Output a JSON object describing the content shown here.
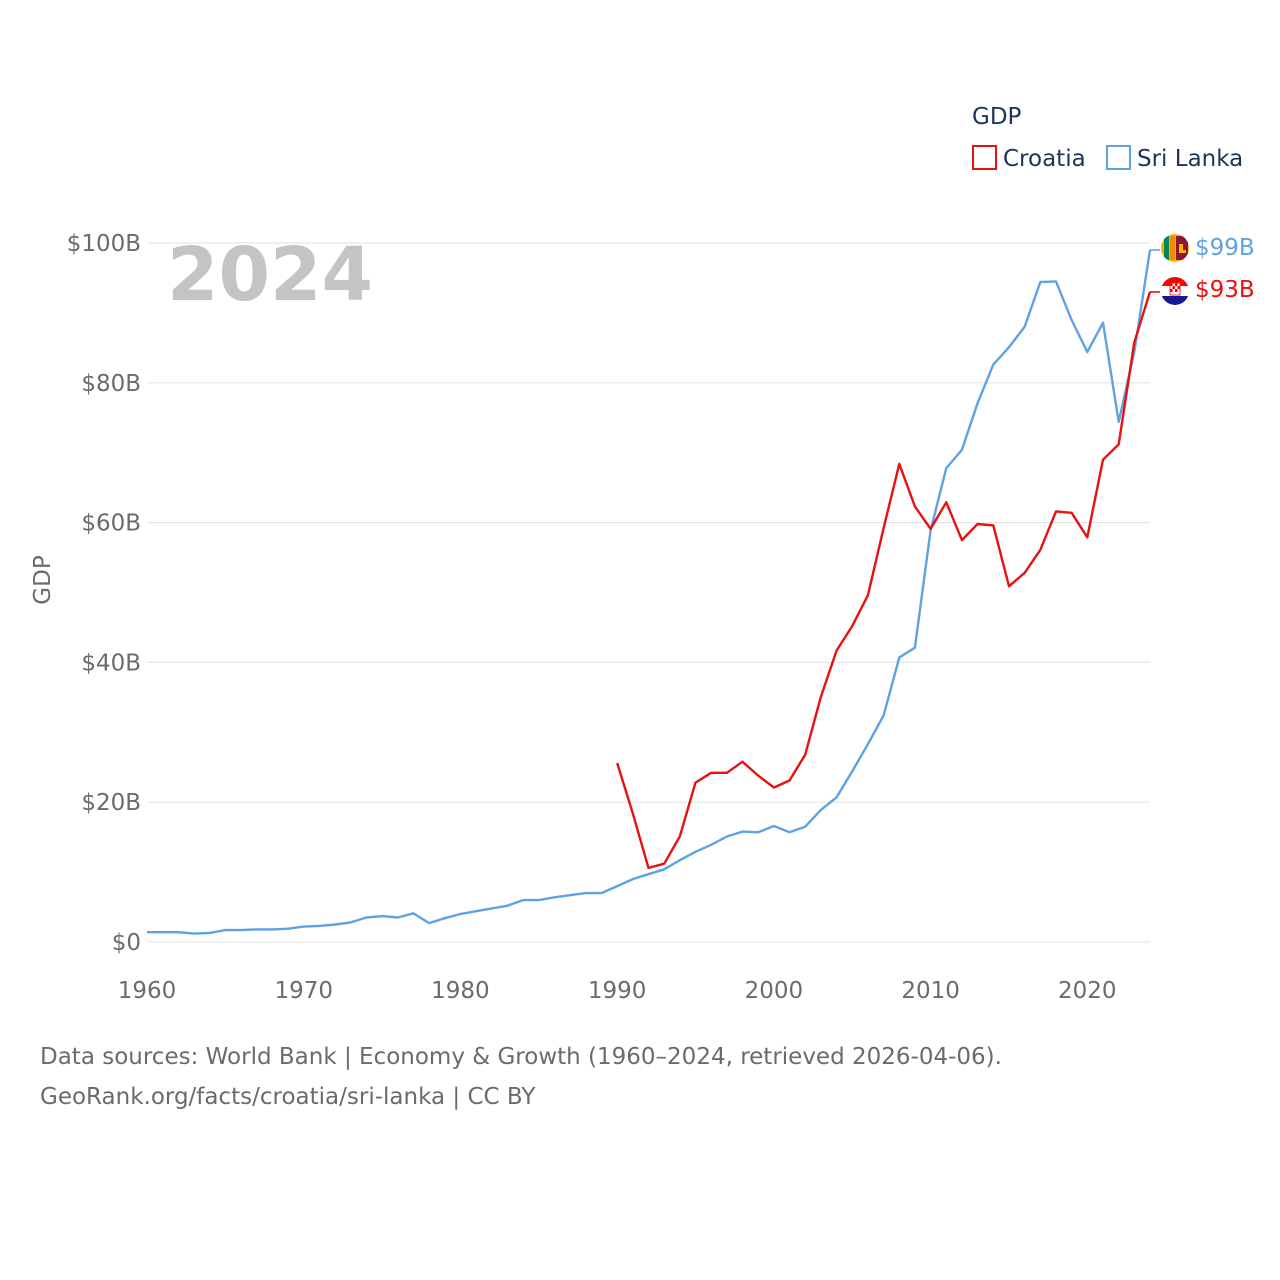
{
  "chart_data": {
    "type": "line",
    "title": "",
    "watermark_year": "2024",
    "ylabel": "GDP",
    "xlabel": "",
    "xlim": [
      1960,
      2024
    ],
    "ylim": [
      0,
      100
    ],
    "x_ticks": [
      1960,
      1970,
      1980,
      1990,
      2000,
      2010,
      2020
    ],
    "x_tick_labels": [
      "1960",
      "1970",
      "1980",
      "1990",
      "2000",
      "2010",
      "2020"
    ],
    "y_ticks": [
      0,
      20,
      40,
      60,
      80,
      100
    ],
    "y_tick_labels": [
      "$0",
      "$20B",
      "$40B",
      "$60B",
      "$80B",
      "$100B"
    ],
    "grid": true,
    "legend": {
      "title": "GDP",
      "position": "top-right",
      "entries": [
        "Croatia",
        "Sri Lanka"
      ]
    },
    "series": [
      {
        "name": "Sri Lanka",
        "color": "#5fa2e3",
        "end_label": "$99B",
        "x": [
          1960,
          1961,
          1962,
          1963,
          1964,
          1965,
          1966,
          1967,
          1968,
          1969,
          1970,
          1971,
          1972,
          1973,
          1974,
          1975,
          1976,
          1977,
          1978,
          1979,
          1980,
          1981,
          1982,
          1983,
          1984,
          1985,
          1986,
          1987,
          1988,
          1989,
          1990,
          1991,
          1992,
          1993,
          1994,
          1995,
          1996,
          1997,
          1998,
          1999,
          2000,
          2001,
          2002,
          2003,
          2004,
          2005,
          2006,
          2007,
          2008,
          2009,
          2010,
          2011,
          2012,
          2013,
          2014,
          2015,
          2016,
          2017,
          2018,
          2019,
          2020,
          2021,
          2022,
          2023,
          2024
        ],
        "values": [
          1.4,
          1.4,
          1.4,
          1.2,
          1.3,
          1.7,
          1.7,
          1.8,
          1.8,
          1.9,
          2.2,
          2.3,
          2.5,
          2.8,
          3.5,
          3.7,
          3.5,
          4.1,
          2.7,
          3.4,
          4.0,
          4.4,
          4.8,
          5.2,
          6.0,
          6.0,
          6.4,
          6.7,
          7.0,
          7.0,
          8.0,
          9.0,
          9.7,
          10.4,
          11.7,
          12.9,
          13.9,
          15.1,
          15.8,
          15.7,
          16.6,
          15.7,
          16.5,
          18.9,
          20.7,
          24.4,
          28.3,
          32.4,
          40.7,
          42.1,
          58.9,
          67.8,
          70.4,
          77.1,
          82.6,
          85.1,
          88.0,
          94.4,
          94.5,
          89.0,
          84.4,
          88.6,
          74.4,
          84.4,
          99.0
        ]
      },
      {
        "name": "Croatia",
        "color": "#e8110f",
        "end_label": "$93B",
        "x": [
          1990,
          1991,
          1992,
          1993,
          1994,
          1995,
          1996,
          1997,
          1998,
          1999,
          2000,
          2001,
          2002,
          2003,
          2004,
          2005,
          2006,
          2007,
          2008,
          2009,
          2010,
          2011,
          2012,
          2013,
          2014,
          2015,
          2016,
          2017,
          2018,
          2019,
          2020,
          2021,
          2022,
          2023,
          2024
        ],
        "values": [
          25.6,
          18.4,
          10.6,
          11.2,
          15.1,
          22.8,
          24.2,
          24.2,
          25.8,
          23.8,
          22.1,
          23.1,
          26.8,
          35.1,
          41.7,
          45.2,
          49.6,
          59.2,
          68.4,
          62.3,
          59.1,
          62.9,
          57.5,
          59.8,
          59.6,
          50.9,
          52.8,
          56.1,
          61.6,
          61.4,
          57.9,
          69.0,
          71.2,
          85.8,
          93.0
        ]
      }
    ]
  },
  "source": {
    "line1": "Data sources: World Bank | Economy & Growth (1960–2024, retrieved 2026-04-06).",
    "line2": "GeoRank.org/facts/croatia/sri-lanka | CC BY"
  }
}
